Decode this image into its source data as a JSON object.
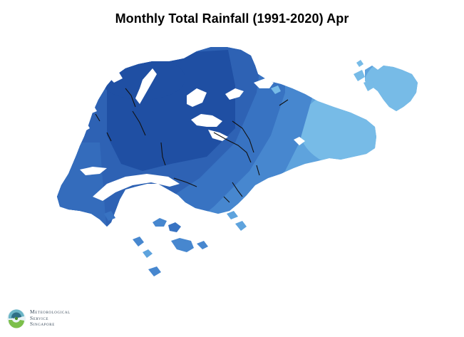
{
  "map": {
    "title": "Monthly Total Rainfall (1991-2020) Apr",
    "colors": {
      "darkest": "#1f4fa3",
      "dark": "#2e62b4",
      "medium_dark": "#3873c2",
      "medium": "#4787cf",
      "light": "#5ea3dd",
      "lightest": "#77bbe7",
      "water_body": "#ffffff",
      "rivers": "#111111"
    }
  },
  "logo": {
    "line1": "Meteorological",
    "line2": "Service",
    "line3": "Singapore"
  }
}
